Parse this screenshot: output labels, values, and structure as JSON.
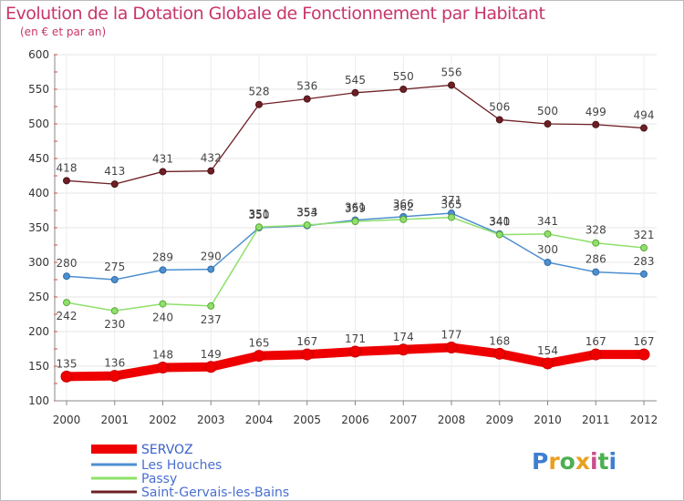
{
  "chart_data": {
    "type": "line",
    "title": "Evolution de la Dotation Globale de Fonctionnement par Habitant",
    "subtitle": "(en € et par an)",
    "categories": [
      "2000",
      "2001",
      "2002",
      "2003",
      "2004",
      "2005",
      "2006",
      "2007",
      "2008",
      "2009",
      "2010",
      "2011",
      "2012"
    ],
    "ylim": [
      100,
      600
    ],
    "yticks": [
      100,
      150,
      200,
      250,
      300,
      350,
      400,
      450,
      500,
      550,
      600
    ],
    "grid": true,
    "legend_position": "bottom-left",
    "series": [
      {
        "name": "SERVOZ",
        "color": "#ee0000",
        "values": [
          135,
          136,
          148,
          149,
          165,
          167,
          171,
          174,
          177,
          168,
          154,
          167,
          167
        ]
      },
      {
        "name": "Les Houches",
        "color": "#4d8fcf",
        "values": [
          280,
          275,
          289,
          290,
          350,
          353,
          361,
          366,
          371,
          341,
          300,
          286,
          283
        ]
      },
      {
        "name": "Passy",
        "color": "#8ee06a",
        "values": [
          242,
          230,
          240,
          237,
          351,
          354,
          359,
          362,
          365,
          340,
          341,
          328,
          321
        ]
      },
      {
        "name": "Saint-Gervais-les-Bains",
        "color": "#6e1f24",
        "values": [
          418,
          413,
          431,
          432,
          528,
          536,
          545,
          550,
          556,
          506,
          500,
          499,
          494
        ]
      }
    ]
  },
  "logo": {
    "text": "Proxiti"
  }
}
